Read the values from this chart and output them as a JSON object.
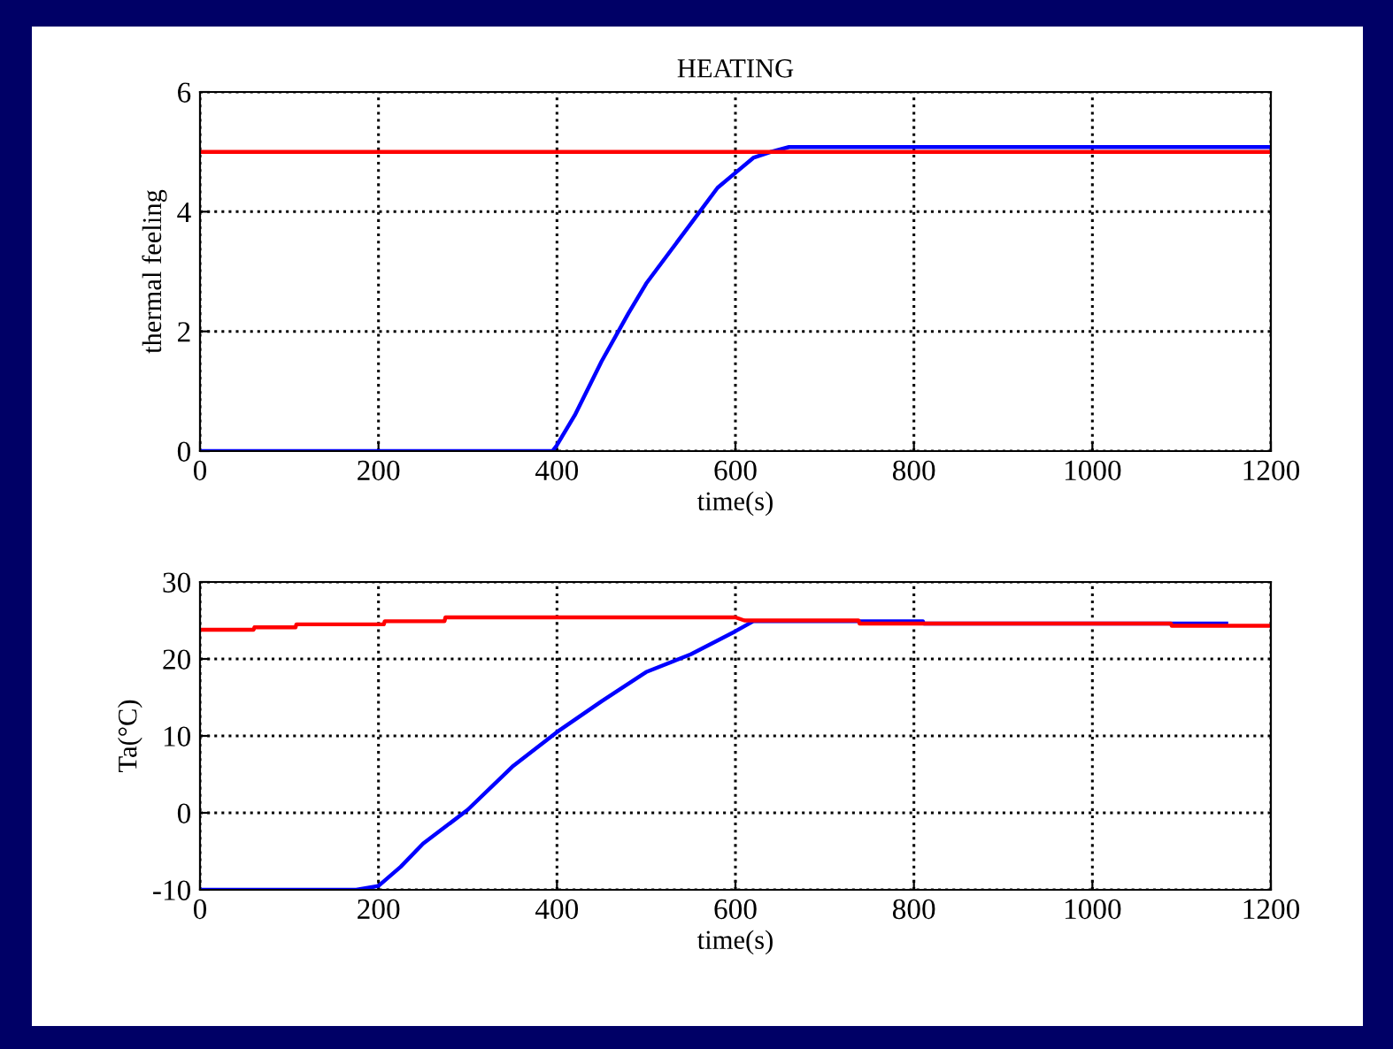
{
  "chart_data": [
    {
      "type": "line",
      "title": "HEATING",
      "xlabel": "time(s)",
      "ylabel": "thermal feeling",
      "xlim": [
        0,
        1200
      ],
      "ylim": [
        0,
        6
      ],
      "xticks": [
        0,
        200,
        400,
        600,
        800,
        1000,
        1200
      ],
      "yticks": [
        0,
        2,
        4,
        6
      ],
      "grid": true,
      "line_style": "solid",
      "marker": "none",
      "series": [
        {
          "color": "#0000ff",
          "x": [
            0,
            395,
            400,
            420,
            450,
            480,
            500,
            550,
            580,
            600,
            620,
            640,
            660,
            1200
          ],
          "values": [
            0,
            0,
            0.1,
            0.6,
            1.5,
            2.3,
            2.8,
            3.8,
            4.4,
            4.65,
            4.9,
            5.0,
            5.08,
            5.08
          ]
        },
        {
          "color": "#ff0000",
          "x": [
            0,
            1200
          ],
          "values": [
            5,
            5
          ]
        }
      ]
    },
    {
      "type": "line",
      "xlabel": "time(s)",
      "ylabel": "Ta(°C)",
      "xlim": [
        0,
        1200
      ],
      "ylim": [
        -10,
        30
      ],
      "xticks": [
        0,
        200,
        400,
        600,
        800,
        1000,
        1200
      ],
      "yticks": [
        -10,
        0,
        10,
        20,
        30
      ],
      "grid": true,
      "line_style": "solid",
      "marker": "none",
      "series": [
        {
          "color": "#0000ff",
          "x": [
            0,
            175,
            200,
            225,
            250,
            300,
            350,
            400,
            450,
            500,
            550,
            600,
            620,
            810,
            811,
            1150
          ],
          "values": [
            -10,
            -10,
            -9.5,
            -7,
            -4,
            0.4,
            6,
            10.5,
            14.5,
            18.3,
            20.6,
            23.6,
            24.9,
            24.9,
            24.6,
            24.6
          ]
        },
        {
          "color": "#ff0000",
          "x": [
            0,
            60,
            61,
            107,
            108,
            206,
            207,
            274,
            275,
            600,
            610,
            738,
            739,
            1088,
            1089,
            1200
          ],
          "values": [
            23.8,
            23.8,
            24.1,
            24.1,
            24.5,
            24.5,
            24.9,
            24.9,
            25.4,
            25.4,
            25.0,
            25.0,
            24.6,
            24.6,
            24.3,
            24.3
          ]
        }
      ]
    }
  ]
}
